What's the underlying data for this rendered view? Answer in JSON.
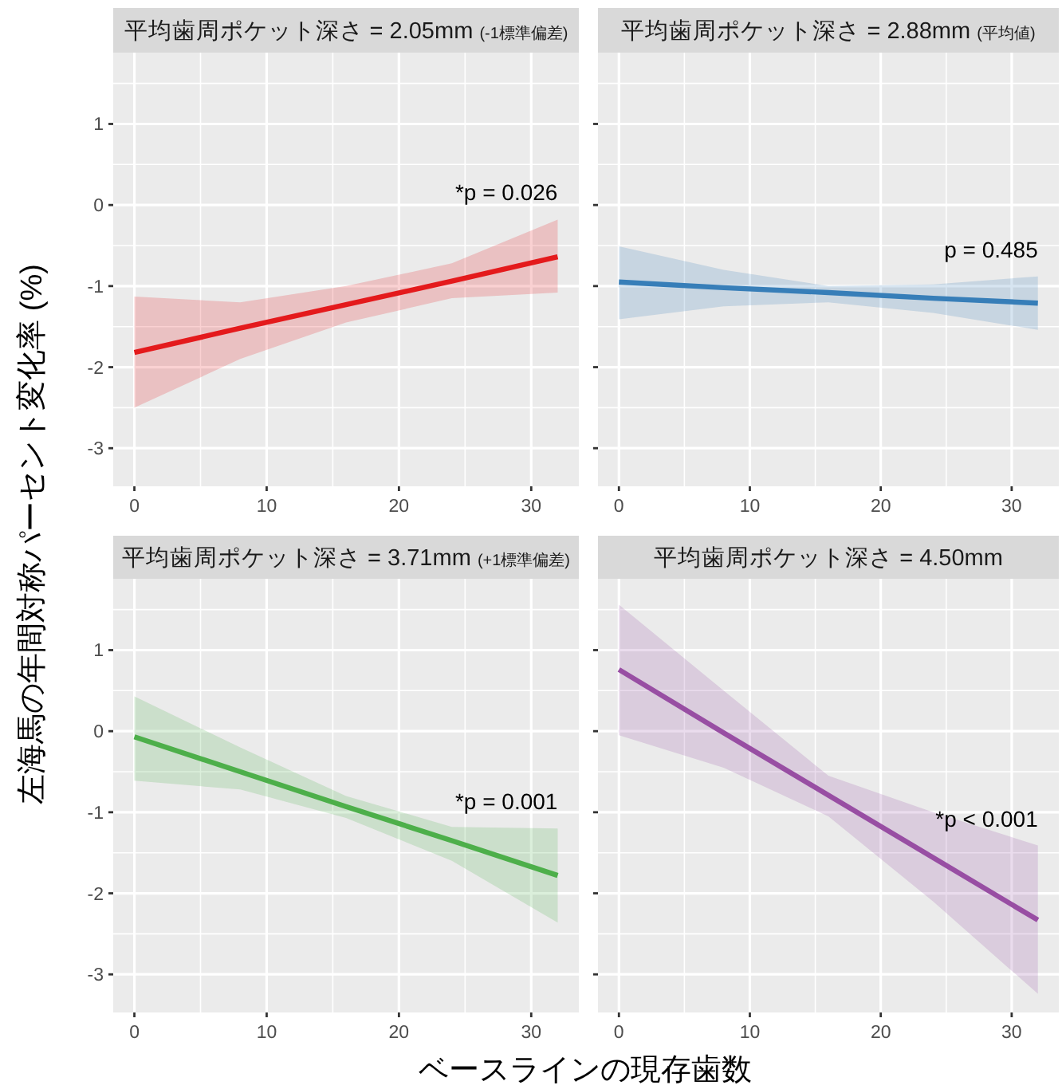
{
  "chart_data": [
    {
      "type": "line",
      "title": "平均歯周ポケット深さ = 2.05mm (-1標準偏差)",
      "ylabel": "左海馬の年間対称パーセント変化率 (%)",
      "xlabel": "ベースラインの現存歯数",
      "x": [
        0,
        8,
        16,
        24,
        32
      ],
      "xlim": [
        -1.6,
        33.6
      ],
      "ylim": [
        -3.47,
        1.88
      ],
      "xticks": [
        0,
        10,
        20,
        30
      ],
      "yticks": [
        -3,
        -2,
        -1,
        0,
        1
      ],
      "grid": true,
      "series": [
        {
          "color": "#e41a1c",
          "values": [
            -1.82,
            -1.52,
            -1.23,
            -0.94,
            -0.64
          ],
          "lower": [
            -2.5,
            -1.9,
            -1.45,
            -1.15,
            -1.08
          ],
          "upper": [
            -1.13,
            -1.2,
            -1.0,
            -0.72,
            -0.18
          ]
        }
      ],
      "annotations": [
        "*p = 0.026"
      ]
    },
    {
      "type": "line",
      "title": "平均歯周ポケット深さ = 2.88mm (平均値)",
      "x": [
        0,
        8,
        16,
        24,
        32
      ],
      "xlim": [
        -1.6,
        33.6
      ],
      "ylim": [
        -3.47,
        1.88
      ],
      "xticks": [
        0,
        10,
        20,
        30
      ],
      "yticks": [
        -3,
        -2,
        -1,
        0,
        1
      ],
      "grid": true,
      "tick_labels": "x",
      "series": [
        {
          "color": "#377eb8",
          "values": [
            -0.95,
            -1.02,
            -1.08,
            -1.15,
            -1.21
          ],
          "lower": [
            -1.41,
            -1.25,
            -1.2,
            -1.33,
            -1.54
          ],
          "upper": [
            -0.51,
            -0.8,
            -1.0,
            -0.98,
            -0.88
          ]
        }
      ],
      "annotations": [
        "p = 0.485"
      ]
    },
    {
      "type": "line",
      "title": "平均歯周ポケット深さ = 3.71mm (+1標準偏差)",
      "x": [
        0,
        8,
        16,
        24,
        32
      ],
      "xlim": [
        -1.6,
        33.6
      ],
      "ylim": [
        -3.47,
        1.88
      ],
      "xticks": [
        0,
        10,
        20,
        30
      ],
      "yticks": [
        -3,
        -2,
        -1,
        0,
        1
      ],
      "grid": true,
      "series": [
        {
          "color": "#4daf4a",
          "values": [
            -0.07,
            -0.5,
            -0.93,
            -1.35,
            -1.78
          ],
          "lower": [
            -0.61,
            -0.72,
            -1.07,
            -1.6,
            -2.36
          ],
          "upper": [
            0.43,
            -0.2,
            -0.8,
            -1.18,
            -1.2
          ]
        }
      ],
      "annotations": [
        "*p = 0.001"
      ]
    },
    {
      "type": "line",
      "title": "平均歯周ポケット深さ = 4.50mm",
      "x": [
        0,
        8,
        16,
        24,
        32
      ],
      "xlim": [
        -1.6,
        33.6
      ],
      "ylim": [
        -3.47,
        1.88
      ],
      "xticks": [
        0,
        10,
        20,
        30
      ],
      "yticks": [
        -3,
        -2,
        -1,
        0,
        1
      ],
      "grid": true,
      "tick_labels": "x",
      "series": [
        {
          "color": "#984ea3",
          "values": [
            0.76,
            -0.02,
            -0.79,
            -1.56,
            -2.33
          ],
          "lower": [
            -0.05,
            -0.45,
            -1.05,
            -2.1,
            -3.24
          ],
          "upper": [
            1.56,
            0.5,
            -0.55,
            -1.0,
            -1.41
          ]
        }
      ],
      "annotations": [
        "*p < 0.001"
      ]
    }
  ]
}
